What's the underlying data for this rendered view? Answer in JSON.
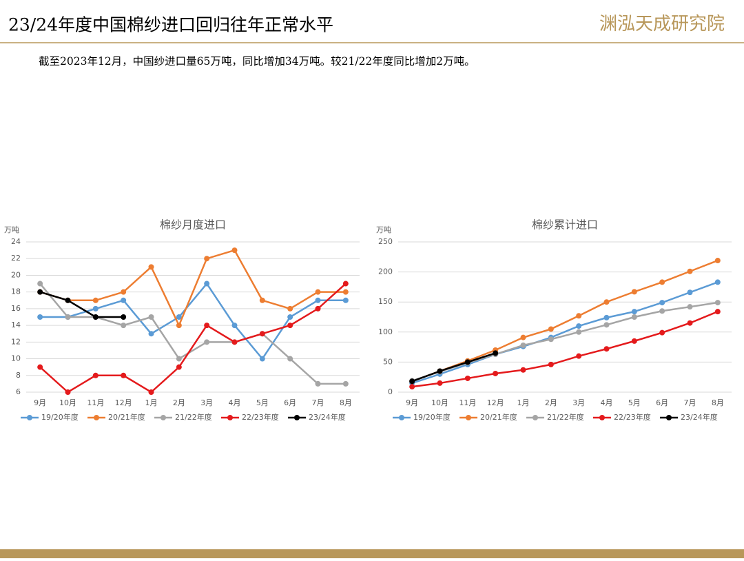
{
  "header": {
    "title": "23/24年度中国棉纱进口回归往年正常水平",
    "logo": "渊泓天成研究院"
  },
  "subtitle": "截至2023年12月，中国纱进口量65万吨，同比增加34万吨。较21/22年度同比增加2万吨。",
  "chart_data": [
    {
      "type": "line",
      "title": "棉纱月度进口",
      "y_label": "万吨",
      "categories": [
        "9月",
        "10月",
        "11月",
        "12月",
        "1月",
        "2月",
        "3月",
        "4月",
        "5月",
        "6月",
        "7月",
        "8月"
      ],
      "ylim": [
        6,
        24
      ],
      "yticks": [
        6,
        8,
        10,
        12,
        14,
        16,
        18,
        20,
        22,
        24
      ],
      "grid": true,
      "legend": "bottom",
      "series": [
        {
          "name": "19/20年度",
          "color": "#5b9bd5",
          "values": [
            15,
            15,
            16,
            17,
            13,
            15,
            19,
            14,
            10,
            15,
            17,
            17
          ]
        },
        {
          "name": "20/21年度",
          "color": "#ed7d31",
          "values": [
            18,
            17,
            17,
            18,
            21,
            14,
            22,
            23,
            17,
            16,
            18,
            18
          ]
        },
        {
          "name": "21/22年度",
          "color": "#a5a5a5",
          "values": [
            19,
            15,
            15,
            14,
            15,
            10,
            12,
            12,
            13,
            10,
            7,
            7
          ]
        },
        {
          "name": "22/23年度",
          "color": "#e41a1c",
          "values": [
            9,
            6,
            8,
            8,
            6,
            9,
            14,
            12,
            13,
            14,
            16,
            19
          ]
        },
        {
          "name": "23/24年度",
          "color": "#000000",
          "values": [
            18,
            17,
            15,
            15,
            null,
            null,
            null,
            null,
            null,
            null,
            null,
            null
          ]
        }
      ]
    },
    {
      "type": "line",
      "title": "棉纱累计进口",
      "y_label": "万吨",
      "categories": [
        "9月",
        "10月",
        "11月",
        "12月",
        "1月",
        "2月",
        "3月",
        "4月",
        "5月",
        "6月",
        "7月",
        "8月"
      ],
      "ylim": [
        0,
        250
      ],
      "yticks": [
        0,
        50,
        100,
        150,
        200,
        250
      ],
      "grid": true,
      "legend": "bottom",
      "series": [
        {
          "name": "19/20年度",
          "color": "#5b9bd5",
          "values": [
            15,
            30,
            46,
            63,
            76,
            91,
            110,
            124,
            134,
            149,
            166,
            183
          ]
        },
        {
          "name": "20/21年度",
          "color": "#ed7d31",
          "values": [
            18,
            35,
            52,
            70,
            91,
            105,
            127,
            150,
            167,
            183,
            201,
            219
          ]
        },
        {
          "name": "21/22年度",
          "color": "#a5a5a5",
          "values": [
            19,
            34,
            49,
            63,
            78,
            88,
            100,
            112,
            125,
            135,
            142,
            149
          ]
        },
        {
          "name": "22/23年度",
          "color": "#e41a1c",
          "values": [
            9,
            15,
            23,
            31,
            37,
            46,
            60,
            72,
            85,
            99,
            115,
            134
          ]
        },
        {
          "name": "23/24年度",
          "color": "#000000",
          "values": [
            18,
            35,
            50,
            65,
            null,
            null,
            null,
            null,
            null,
            null,
            null,
            null
          ]
        }
      ]
    }
  ]
}
